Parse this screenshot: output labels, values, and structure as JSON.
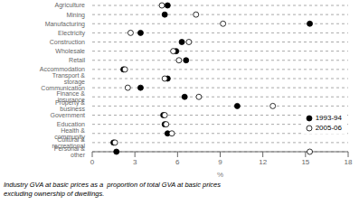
{
  "chart_data": {
    "type": "dot",
    "orientation": "horizontal",
    "categories": [
      "Agriculture",
      "Mining",
      "Manufacturing",
      "Electricity",
      "Construction",
      "Wholesale",
      "Retail",
      "Accommodation",
      "Transport & storage",
      "Communication",
      "Finance & insurance",
      "Property & business",
      "Government",
      "Education",
      "Health & community",
      "Cultural & recreational",
      "Personal & other"
    ],
    "series": [
      {
        "name": "1993-94",
        "color": "#000000",
        "marker": "filled_circle",
        "values": [
          5.3,
          5.1,
          15.3,
          3.4,
          6.3,
          5.9,
          6.6,
          2.2,
          5.3,
          3.4,
          6.5,
          10.2,
          5.0,
          5.1,
          5.3,
          1.5,
          1.7
        ]
      },
      {
        "name": "2005-06",
        "color": "#000000",
        "marker": "open_circle",
        "values": [
          4.9,
          7.3,
          9.2,
          2.7,
          6.8,
          5.7,
          6.1,
          2.3,
          5.1,
          2.5,
          7.5,
          12.7,
          5.1,
          5.2,
          5.6,
          1.6,
          15.3
        ]
      }
    ],
    "xlim": [
      0,
      18
    ],
    "xticks": [
      0,
      3,
      6,
      9,
      12,
      15,
      18
    ],
    "x_label": "%",
    "grid": true,
    "legend": "lower right",
    "annotation": "Industry GVA at basic prices as a  proportion of total GVA at basic prices\nexcluding ownership of dwellings."
  }
}
